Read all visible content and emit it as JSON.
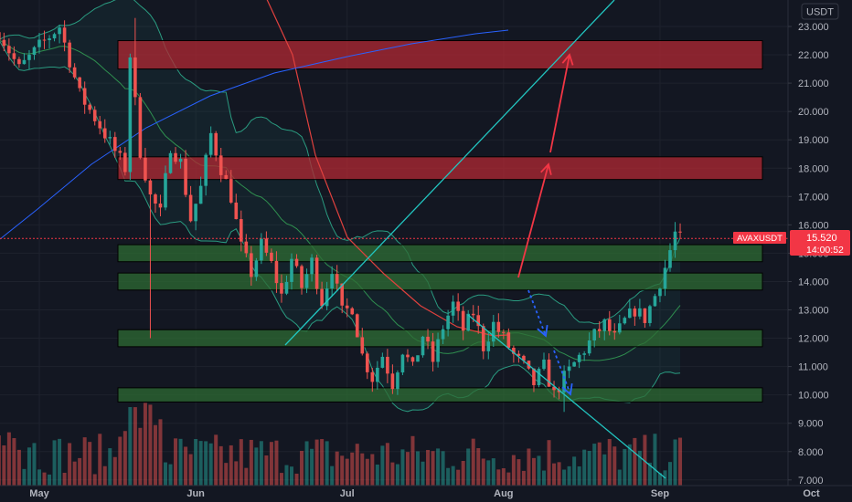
{
  "chart_data": {
    "type": "candlestick",
    "symbol": "AVAXUSDT",
    "currency": "USDT",
    "last_price": "15.520",
    "countdown": "14:00:52",
    "ylim": [
      7.0,
      23.6
    ],
    "y_ticks": [
      "23.000",
      "22.000",
      "21.000",
      "20.000",
      "19.000",
      "18.000",
      "17.000",
      "16.000",
      "15.000",
      "14.000",
      "13.000",
      "12.000",
      "11.000",
      "10.000",
      "9.000",
      "8.000",
      "7.000"
    ],
    "x_ticks": [
      "May",
      "Jun",
      "Jul",
      "Aug",
      "Sep",
      "Oct"
    ],
    "zones": [
      {
        "kind": "resistance",
        "low": 21.5,
        "high": 22.5
      },
      {
        "kind": "resistance",
        "low": 17.6,
        "high": 18.4
      },
      {
        "kind": "support",
        "low": 14.7,
        "high": 15.3
      },
      {
        "kind": "support",
        "low": 13.7,
        "high": 14.3
      },
      {
        "kind": "support",
        "low": 11.7,
        "high": 12.3
      },
      {
        "kind": "support",
        "low": 9.75,
        "high": 10.25
      }
    ],
    "colors": {
      "background": "#131722",
      "up": "#26a69a",
      "down": "#ef5350",
      "resistance_fill": "#b22833",
      "support_fill": "#2e6b33",
      "trendline": "#22c5c0",
      "price_tag": "#f23645"
    },
    "indicators": [
      "bollinger-bands",
      "moving-average-red",
      "moving-average-blue",
      "volume"
    ]
  }
}
